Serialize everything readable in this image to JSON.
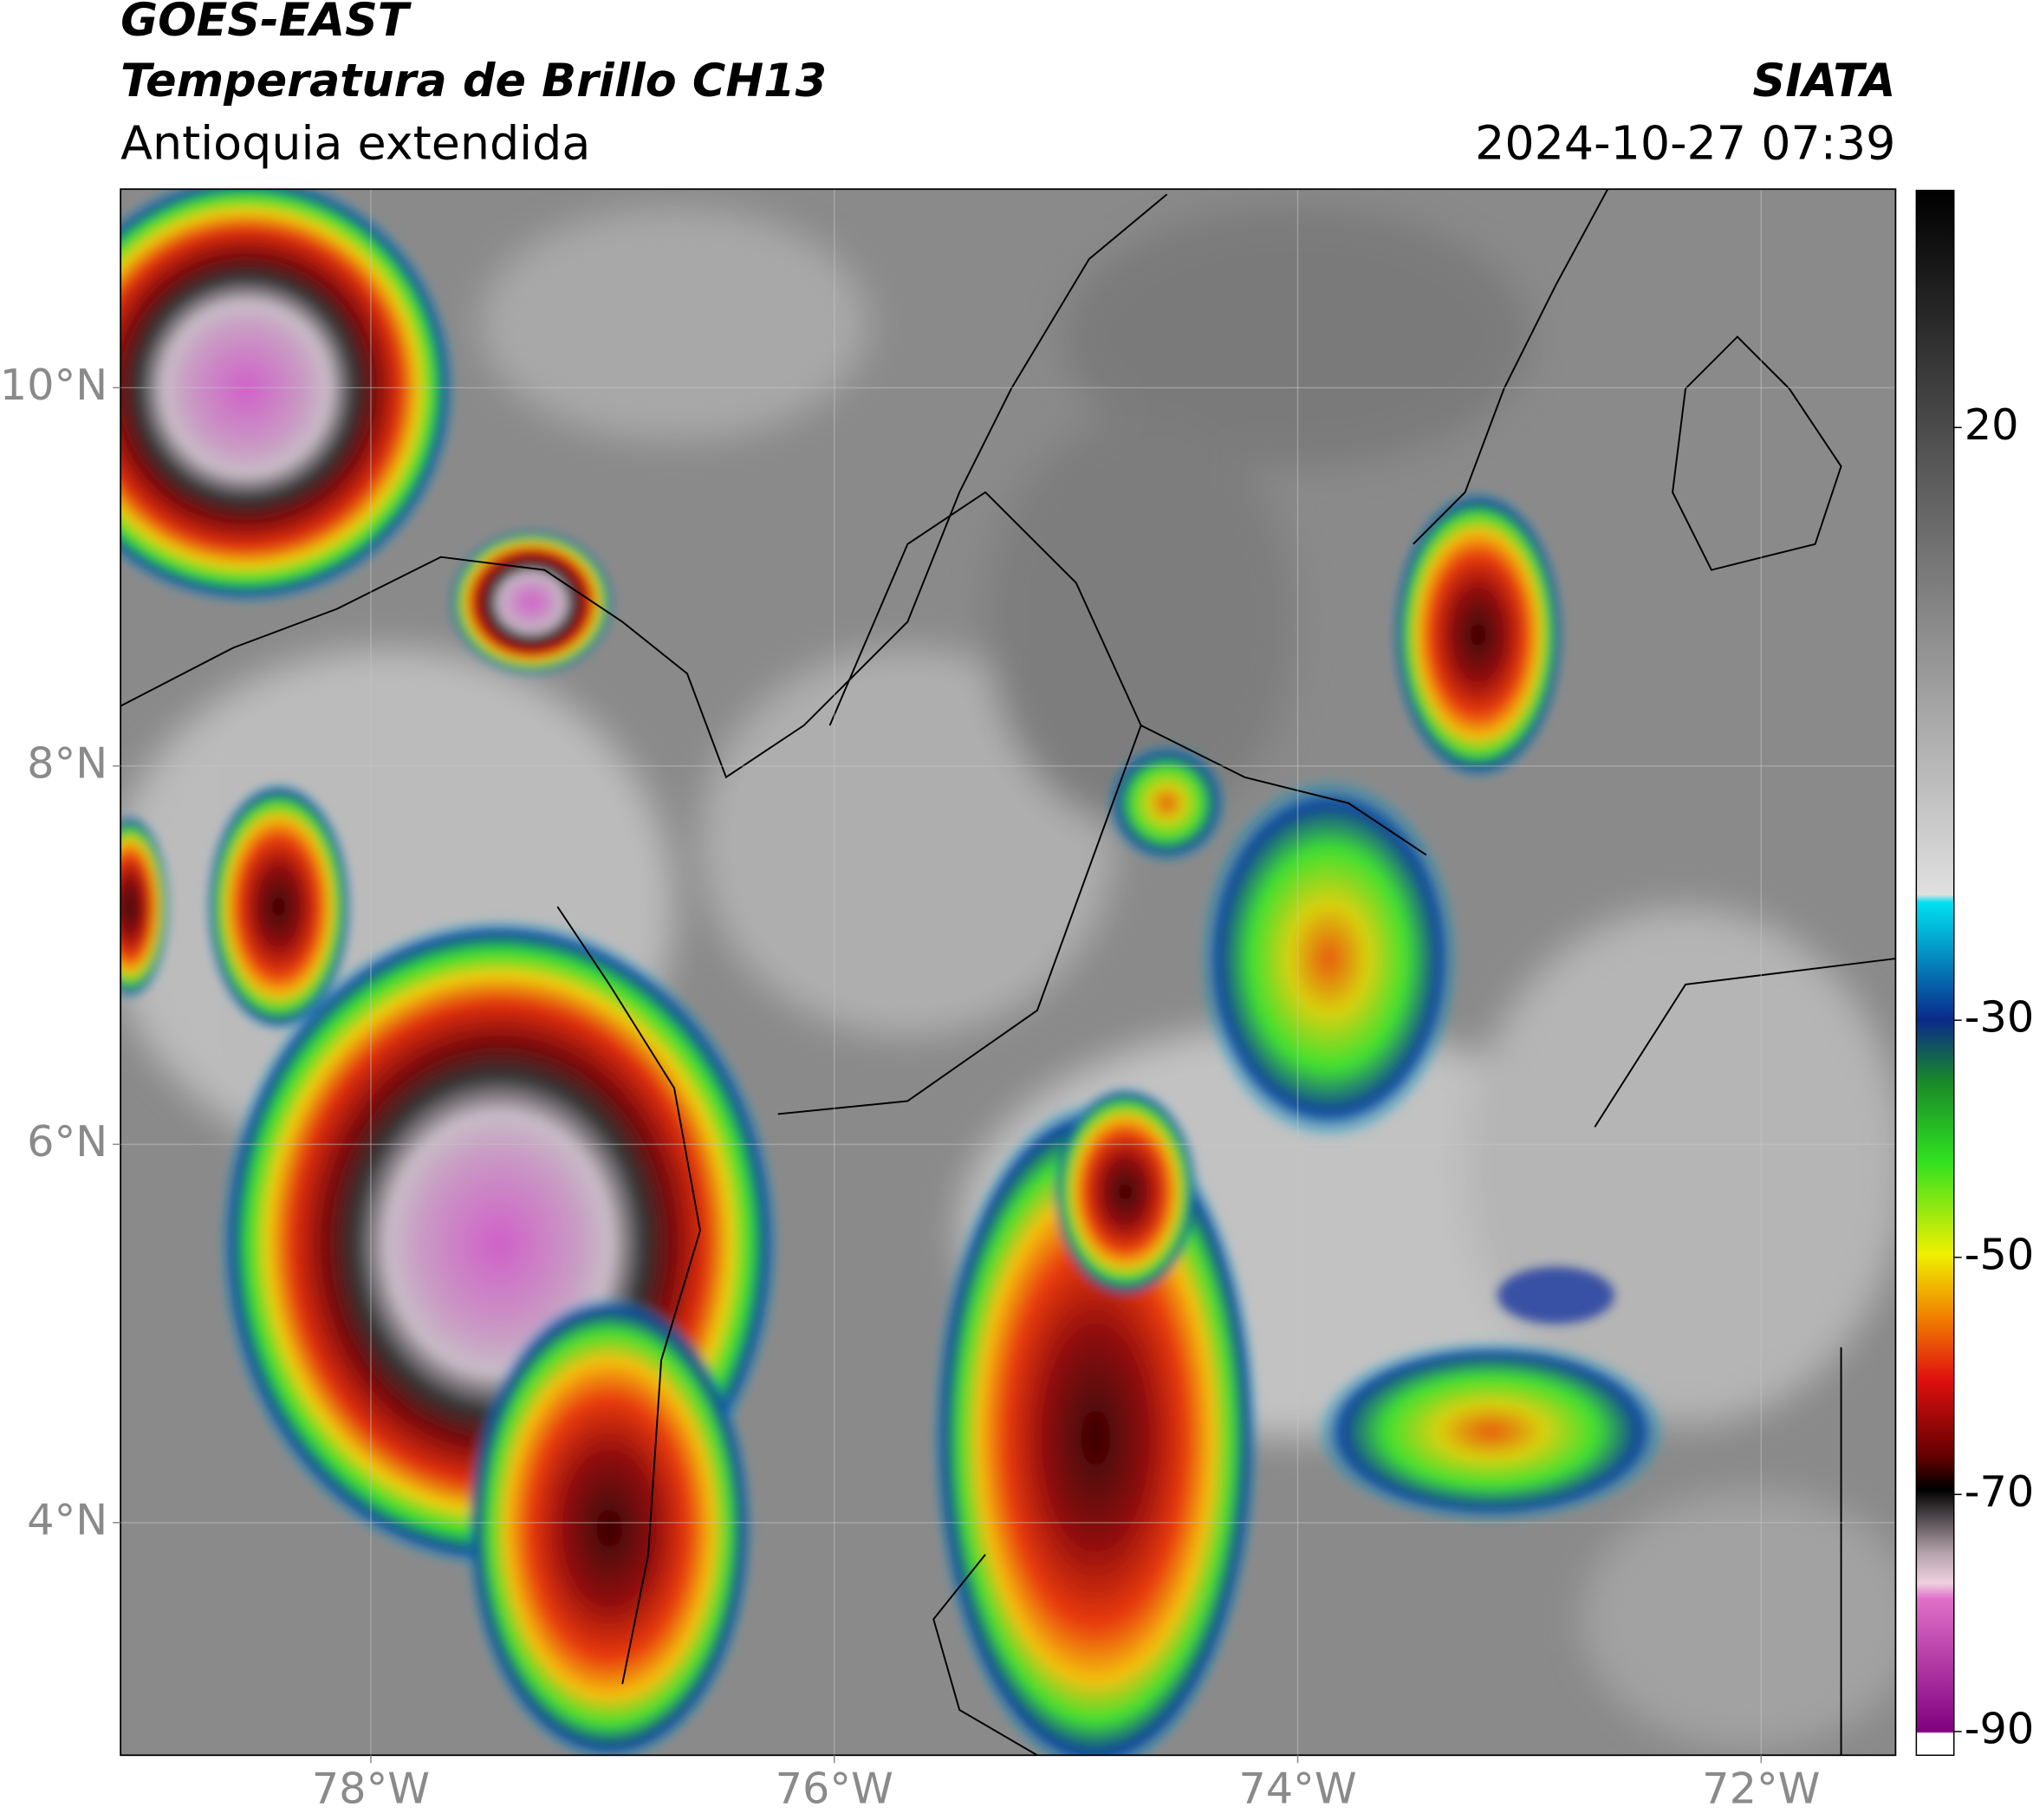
{
  "header": {
    "title": "GOES-EAST",
    "subtitle": "Temperatura de Brillo CH13",
    "region": "Antioquia extendida",
    "source": "SIATA",
    "datetime": "2024-10-27 07:39"
  },
  "map": {
    "xlim": [
      -79.08,
      -71.42
    ],
    "ylim": [
      2.77,
      11.05
    ],
    "xticks": [
      {
        "value": -78,
        "label": "78°W"
      },
      {
        "value": -76,
        "label": "76°W"
      },
      {
        "value": -74,
        "label": "74°W"
      },
      {
        "value": -72,
        "label": "72°W"
      }
    ],
    "yticks": [
      {
        "value": 10,
        "label": "10°N"
      },
      {
        "value": 8,
        "label": "8°N"
      },
      {
        "value": 6,
        "label": "6°N"
      },
      {
        "value": 4,
        "label": "4°N"
      }
    ],
    "grid": true
  },
  "colorbar": {
    "lim": [
      -92,
      40
    ],
    "ticks": [
      20,
      -30,
      -50,
      -70,
      -90
    ]
  }
}
